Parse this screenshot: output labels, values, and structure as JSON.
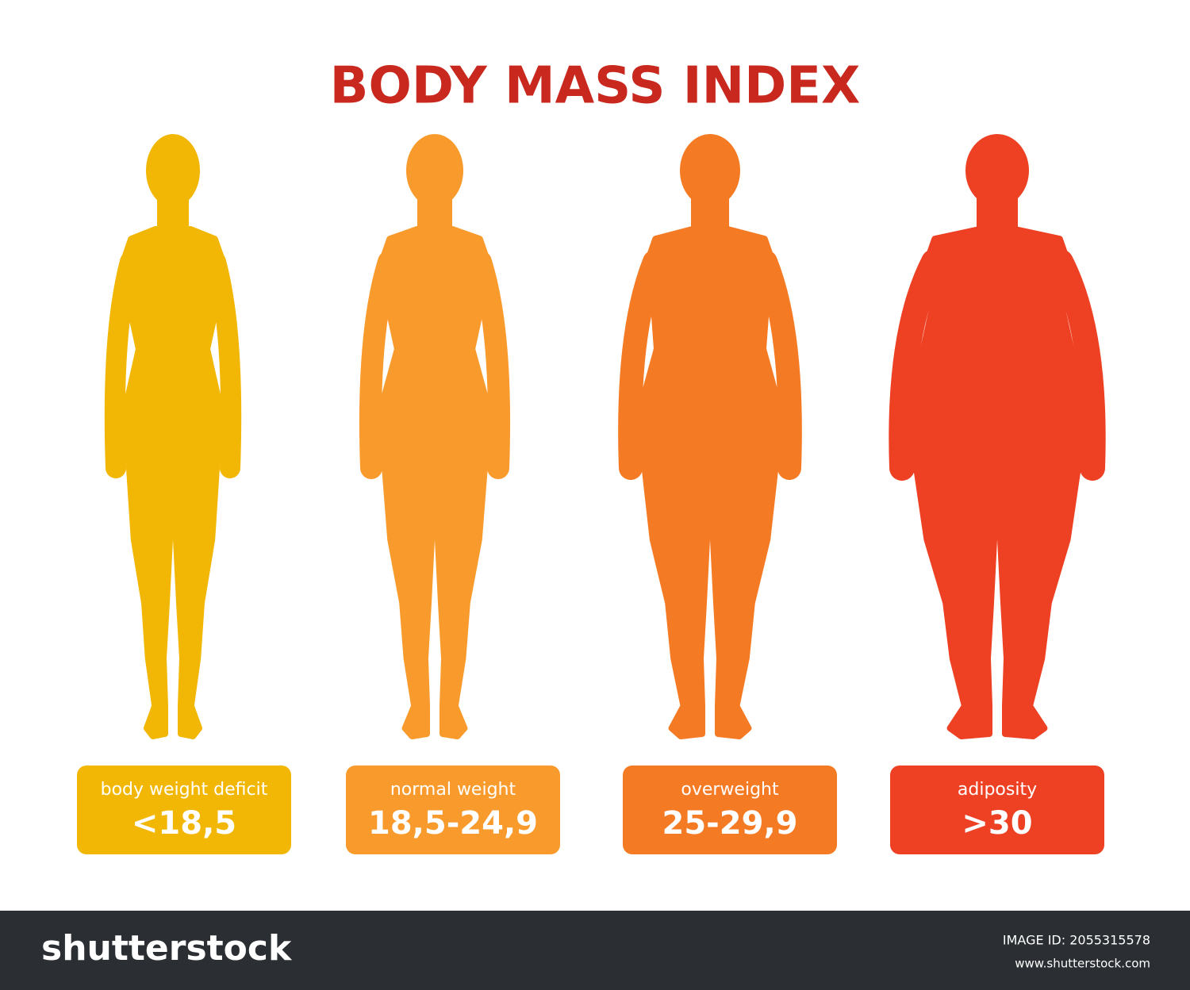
{
  "header": {
    "title": "BODY MASS INDEX"
  },
  "categories": [
    {
      "label": "body weight deficit",
      "range": "<18,5",
      "color": "#f2b705"
    },
    {
      "label": "normal weight",
      "range": "18,5-24,9",
      "color": "#f99a2c"
    },
    {
      "label": "overweight",
      "range": "25-29,9",
      "color": "#f57a24"
    },
    {
      "label": "adiposity",
      "range": ">30",
      "color": "#ee4023"
    }
  ],
  "footer": {
    "brand": "shutterstock",
    "image_id": "IMAGE ID: 2055315578",
    "site": "www.shutterstock.com"
  }
}
